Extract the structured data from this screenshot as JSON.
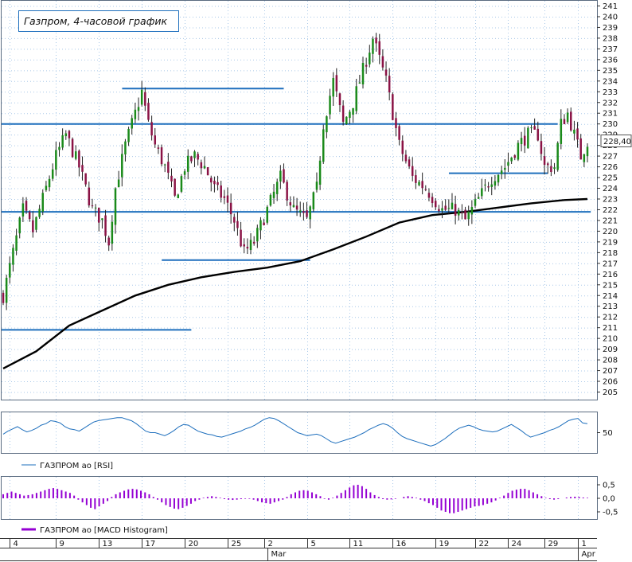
{
  "chart_data": [
    {
      "type": "candlestick",
      "title": "Газпром, 4-часовой график",
      "ylim": [
        204,
        242
      ],
      "y_ticks": [
        "241",
        "240",
        "239",
        "238",
        "237",
        "236",
        "235",
        "234",
        "233",
        "232",
        "231",
        "230",
        "229",
        "228",
        "227",
        "226",
        "225",
        "224",
        "223",
        "222",
        "221",
        "220",
        "219",
        "218",
        "217",
        "216",
        "215",
        "214",
        "213",
        "212",
        "211",
        "210",
        "209",
        "208",
        "207",
        "206",
        "205"
      ],
      "last_price_label": "228,40",
      "candle_count": 178,
      "anchors": [
        [
          0,
          214
        ],
        [
          3,
          218
        ],
        [
          6,
          222
        ],
        [
          9,
          220
        ],
        [
          12,
          223
        ],
        [
          16,
          227
        ],
        [
          19,
          229
        ],
        [
          23,
          226
        ],
        [
          27,
          222
        ],
        [
          30,
          221
        ],
        [
          32,
          219
        ],
        [
          34,
          224
        ],
        [
          37,
          228
        ],
        [
          40,
          231
        ],
        [
          42,
          233
        ],
        [
          44,
          230
        ],
        [
          46,
          228
        ],
        [
          49,
          226
        ],
        [
          52,
          223
        ],
        [
          55,
          226
        ],
        [
          58,
          227
        ],
        [
          61,
          226
        ],
        [
          64,
          224
        ],
        [
          67,
          223
        ],
        [
          70,
          221
        ],
        [
          73,
          218
        ],
        [
          76,
          219
        ],
        [
          80,
          222
        ],
        [
          84,
          225
        ],
        [
          88,
          222
        ],
        [
          92,
          221
        ],
        [
          95,
          224
        ],
        [
          97,
          230
        ],
        [
          100,
          234
        ],
        [
          103,
          230
        ],
        [
          106,
          232
        ],
        [
          109,
          235
        ],
        [
          112,
          238
        ],
        [
          114,
          236
        ],
        [
          116,
          234
        ],
        [
          118,
          231
        ],
        [
          120,
          228
        ],
        [
          124,
          225
        ],
        [
          128,
          224
        ],
        [
          133,
          222
        ],
        [
          137,
          222
        ],
        [
          140,
          221
        ],
        [
          144,
          223
        ],
        [
          148,
          225
        ],
        [
          152,
          226
        ],
        [
          156,
          228
        ],
        [
          159,
          229
        ],
        [
          162,
          229
        ],
        [
          164,
          226
        ],
        [
          167,
          226
        ],
        [
          169,
          230
        ],
        [
          171,
          231
        ],
        [
          173,
          229
        ],
        [
          175,
          227
        ],
        [
          177,
          228.4
        ]
      ],
      "ma_line": [
        [
          0,
          207.2
        ],
        [
          10,
          208.8
        ],
        [
          20,
          211.2
        ],
        [
          30,
          212.6
        ],
        [
          40,
          214.0
        ],
        [
          50,
          215.0
        ],
        [
          60,
          215.7
        ],
        [
          70,
          216.2
        ],
        [
          80,
          216.6
        ],
        [
          90,
          217.2
        ],
        [
          100,
          218.3
        ],
        [
          110,
          219.5
        ],
        [
          120,
          220.8
        ],
        [
          130,
          221.5
        ],
        [
          140,
          221.8
        ],
        [
          150,
          222.2
        ],
        [
          160,
          222.6
        ],
        [
          170,
          222.9
        ],
        [
          177,
          223.0
        ]
      ],
      "support_lines": [
        {
          "from": 0,
          "to": 168,
          "y": 230.0
        },
        {
          "from": 0,
          "to": 178,
          "y": 221.8
        },
        {
          "from": 37,
          "to": 85,
          "y": 233.3
        },
        {
          "from": 49,
          "to": 93,
          "y": 217.3
        },
        {
          "from": 0,
          "to": 57,
          "y": 210.8
        },
        {
          "from": 136,
          "to": 165,
          "y": 225.4
        }
      ],
      "colors": {
        "up": "#1a8a1a",
        "down": "#8a1245",
        "wick": "#222222",
        "ma": "#000000",
        "levels": "#1e6fbd"
      }
    },
    {
      "type": "line",
      "series": [
        {
          "name": "ГАЗПРОМ ао [RSI]"
        }
      ],
      "legend_label": "ГАЗПРОМ ао [RSI]",
      "ylim": [
        25,
        75
      ],
      "y_ticks": [
        "50"
      ],
      "values": [
        48,
        52,
        55,
        58,
        54,
        51,
        53,
        56,
        60,
        62,
        66,
        65,
        63,
        58,
        55,
        54,
        52,
        56,
        60,
        64,
        66,
        67,
        68,
        69,
        70,
        70,
        68,
        66,
        62,
        57,
        52,
        50,
        50,
        48,
        46,
        49,
        53,
        58,
        61,
        60,
        56,
        52,
        50,
        48,
        47,
        45,
        44,
        46,
        48,
        50,
        52,
        55,
        57,
        60,
        64,
        68,
        70,
        69,
        66,
        62,
        58,
        54,
        50,
        48,
        46,
        47,
        48,
        46,
        42,
        38,
        36,
        38,
        40,
        42,
        44,
        47,
        50,
        54,
        57,
        60,
        62,
        60,
        56,
        50,
        45,
        42,
        40,
        38,
        36,
        34,
        32,
        34,
        38,
        42,
        47,
        52,
        56,
        58,
        60,
        58,
        55,
        53,
        52,
        51,
        52,
        55,
        58,
        61,
        57,
        53,
        48,
        44,
        46,
        48,
        50,
        53,
        55,
        58,
        62,
        66,
        68,
        69,
        63,
        62
      ],
      "colors": {
        "line": "#1e6fbd"
      }
    },
    {
      "type": "bar",
      "series": [
        {
          "name": "ГАЗПРОМ ао [MACD Histogram]"
        }
      ],
      "legend_label": "ГАЗПРОМ ао [MACD Histogram]",
      "ylim": [
        -0.75,
        0.75
      ],
      "y_ticks": [
        "0,5",
        "0,0",
        "-0,5"
      ],
      "values": [
        0.15,
        0.2,
        0.25,
        0.2,
        0.15,
        0.1,
        0.12,
        0.15,
        0.2,
        0.25,
        0.3,
        0.35,
        0.38,
        0.35,
        0.3,
        0.25,
        0.2,
        0.1,
        -0.05,
        -0.15,
        -0.25,
        -0.35,
        -0.4,
        -0.3,
        -0.2,
        -0.1,
        0.05,
        0.15,
        0.22,
        0.28,
        0.33,
        0.35,
        0.33,
        0.28,
        0.22,
        0.15,
        0.05,
        -0.05,
        -0.15,
        -0.25,
        -0.32,
        -0.38,
        -0.4,
        -0.35,
        -0.28,
        -0.2,
        -0.1,
        -0.05,
        0.02,
        0.05,
        0.08,
        0.05,
        0.02,
        -0.03,
        -0.05,
        -0.06,
        -0.05,
        -0.03,
        -0.02,
        -0.02,
        -0.05,
        -0.1,
        -0.15,
        -0.18,
        -0.2,
        -0.15,
        -0.1,
        -0.05,
        0.05,
        0.15,
        0.22,
        0.28,
        0.3,
        0.28,
        0.22,
        0.15,
        0.08,
        -0.02,
        -0.05,
        0.02,
        0.1,
        0.2,
        0.3,
        0.4,
        0.48,
        0.5,
        0.45,
        0.35,
        0.22,
        0.12,
        0.05,
        -0.03,
        -0.05,
        -0.04,
        -0.02,
        0.0,
        0.05,
        0.08,
        0.05,
        0.02,
        -0.05,
        -0.1,
        -0.18,
        -0.25,
        -0.35,
        -0.45,
        -0.5,
        -0.55,
        -0.55,
        -0.5,
        -0.45,
        -0.4,
        -0.35,
        -0.3,
        -0.28,
        -0.25,
        -0.2,
        -0.15,
        -0.08,
        0.02,
        0.1,
        0.2,
        0.28,
        0.32,
        0.35,
        0.35,
        0.3,
        0.22,
        0.15,
        0.08,
        0.02,
        -0.03,
        -0.05,
        -0.03,
        0.0,
        0.03,
        0.05,
        0.06,
        0.05,
        0.03,
        0.02
      ],
      "colors": {
        "bar": "#9400d3"
      }
    }
  ],
  "x_axis": {
    "days": [
      {
        "label": "4",
        "i": 2
      },
      {
        "label": "9",
        "i": 16
      },
      {
        "label": "13",
        "i": 29
      },
      {
        "label": "17",
        "i": 42
      },
      {
        "label": "20",
        "i": 55
      },
      {
        "label": "25",
        "i": 68
      },
      {
        "label": "2",
        "i": 79
      },
      {
        "label": "5",
        "i": 92
      },
      {
        "label": "11",
        "i": 105
      },
      {
        "label": "16",
        "i": 118
      },
      {
        "label": "19",
        "i": 131
      },
      {
        "label": "22",
        "i": 143
      },
      {
        "label": "24",
        "i": 153
      },
      {
        "label": "29",
        "i": 164
      },
      {
        "label": "1",
        "i": 174
      }
    ],
    "months": [
      {
        "label": "Mar",
        "i": 80
      },
      {
        "label": "Apr",
        "i": 174
      }
    ]
  }
}
